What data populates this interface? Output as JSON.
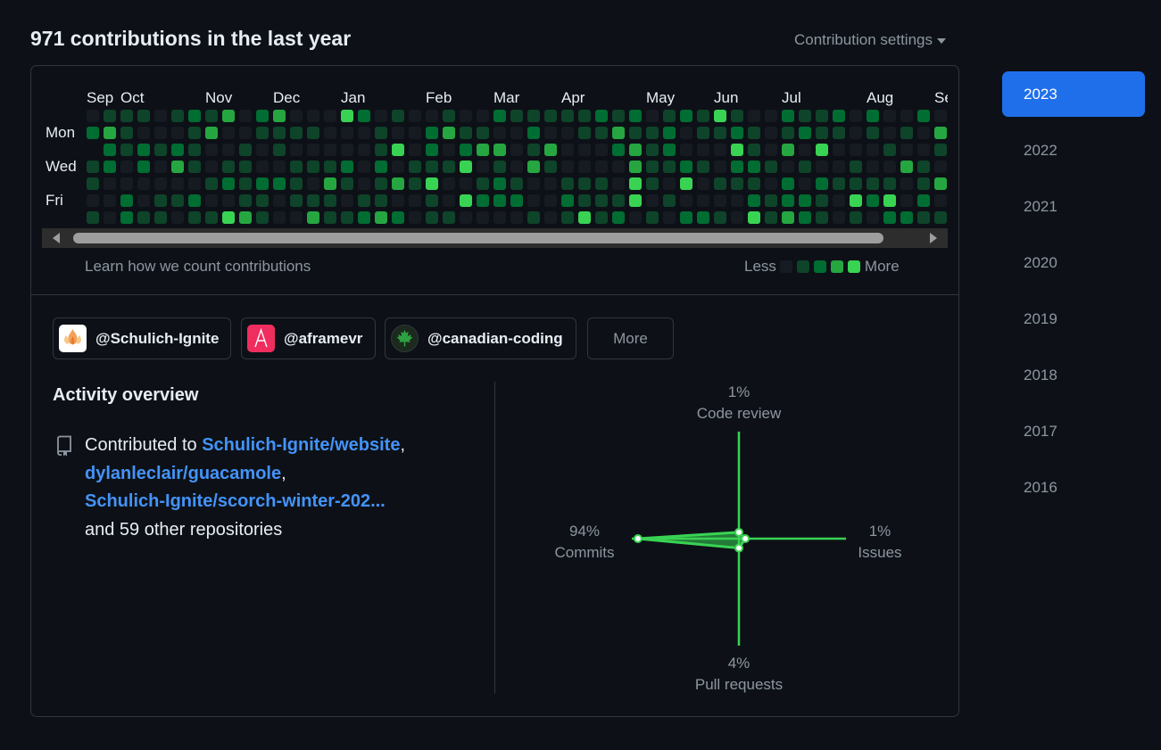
{
  "header": {
    "title": "971 contributions in the last year",
    "settings_label": "Contribution settings"
  },
  "calendar": {
    "months": [
      "Sep",
      "Oct",
      "Nov",
      "Dec",
      "Jan",
      "Feb",
      "Mar",
      "Apr",
      "May",
      "Jun",
      "Jul",
      "Aug",
      "Se"
    ],
    "day_labels": [
      "Mon",
      "Wed",
      "Fri"
    ],
    "learn_link": "Learn how we count contributions",
    "legend_less": "Less",
    "legend_more": "More",
    "level_colors": [
      "#161b22",
      "#0e4429",
      "#006d32",
      "#26a641",
      "#39d353"
    ]
  },
  "orgs": [
    {
      "handle": "@Schulich-Ignite",
      "logo": "flame-logo"
    },
    {
      "handle": "@aframevr",
      "logo": "aframe-logo"
    },
    {
      "handle": "@canadian-coding",
      "logo": "maple-leaf-logo"
    }
  ],
  "orgs_more_label": "More",
  "activity": {
    "title": "Activity overview",
    "prefix": "Contributed to ",
    "repo1": "Schulich-Ignite/website",
    "repo2": "dylanleclair/guacamole",
    "repo3": "Schulich-Ignite/scorch-winter-202...",
    "suffix": "and 59 other repositories",
    "sep": ","
  },
  "radar": {
    "code_review": {
      "pct": "1%",
      "label": "Code review",
      "value": 1
    },
    "issues": {
      "pct": "1%",
      "label": "Issues",
      "value": 1
    },
    "pull_requests": {
      "pct": "4%",
      "label": "Pull requests",
      "value": 4
    },
    "commits": {
      "pct": "94%",
      "label": "Commits",
      "value": 94
    },
    "color": "#39d353"
  },
  "years": [
    "2023",
    "2022",
    "2021",
    "2020",
    "2019",
    "2018",
    "2017",
    "2016"
  ],
  "active_year": "2023"
}
